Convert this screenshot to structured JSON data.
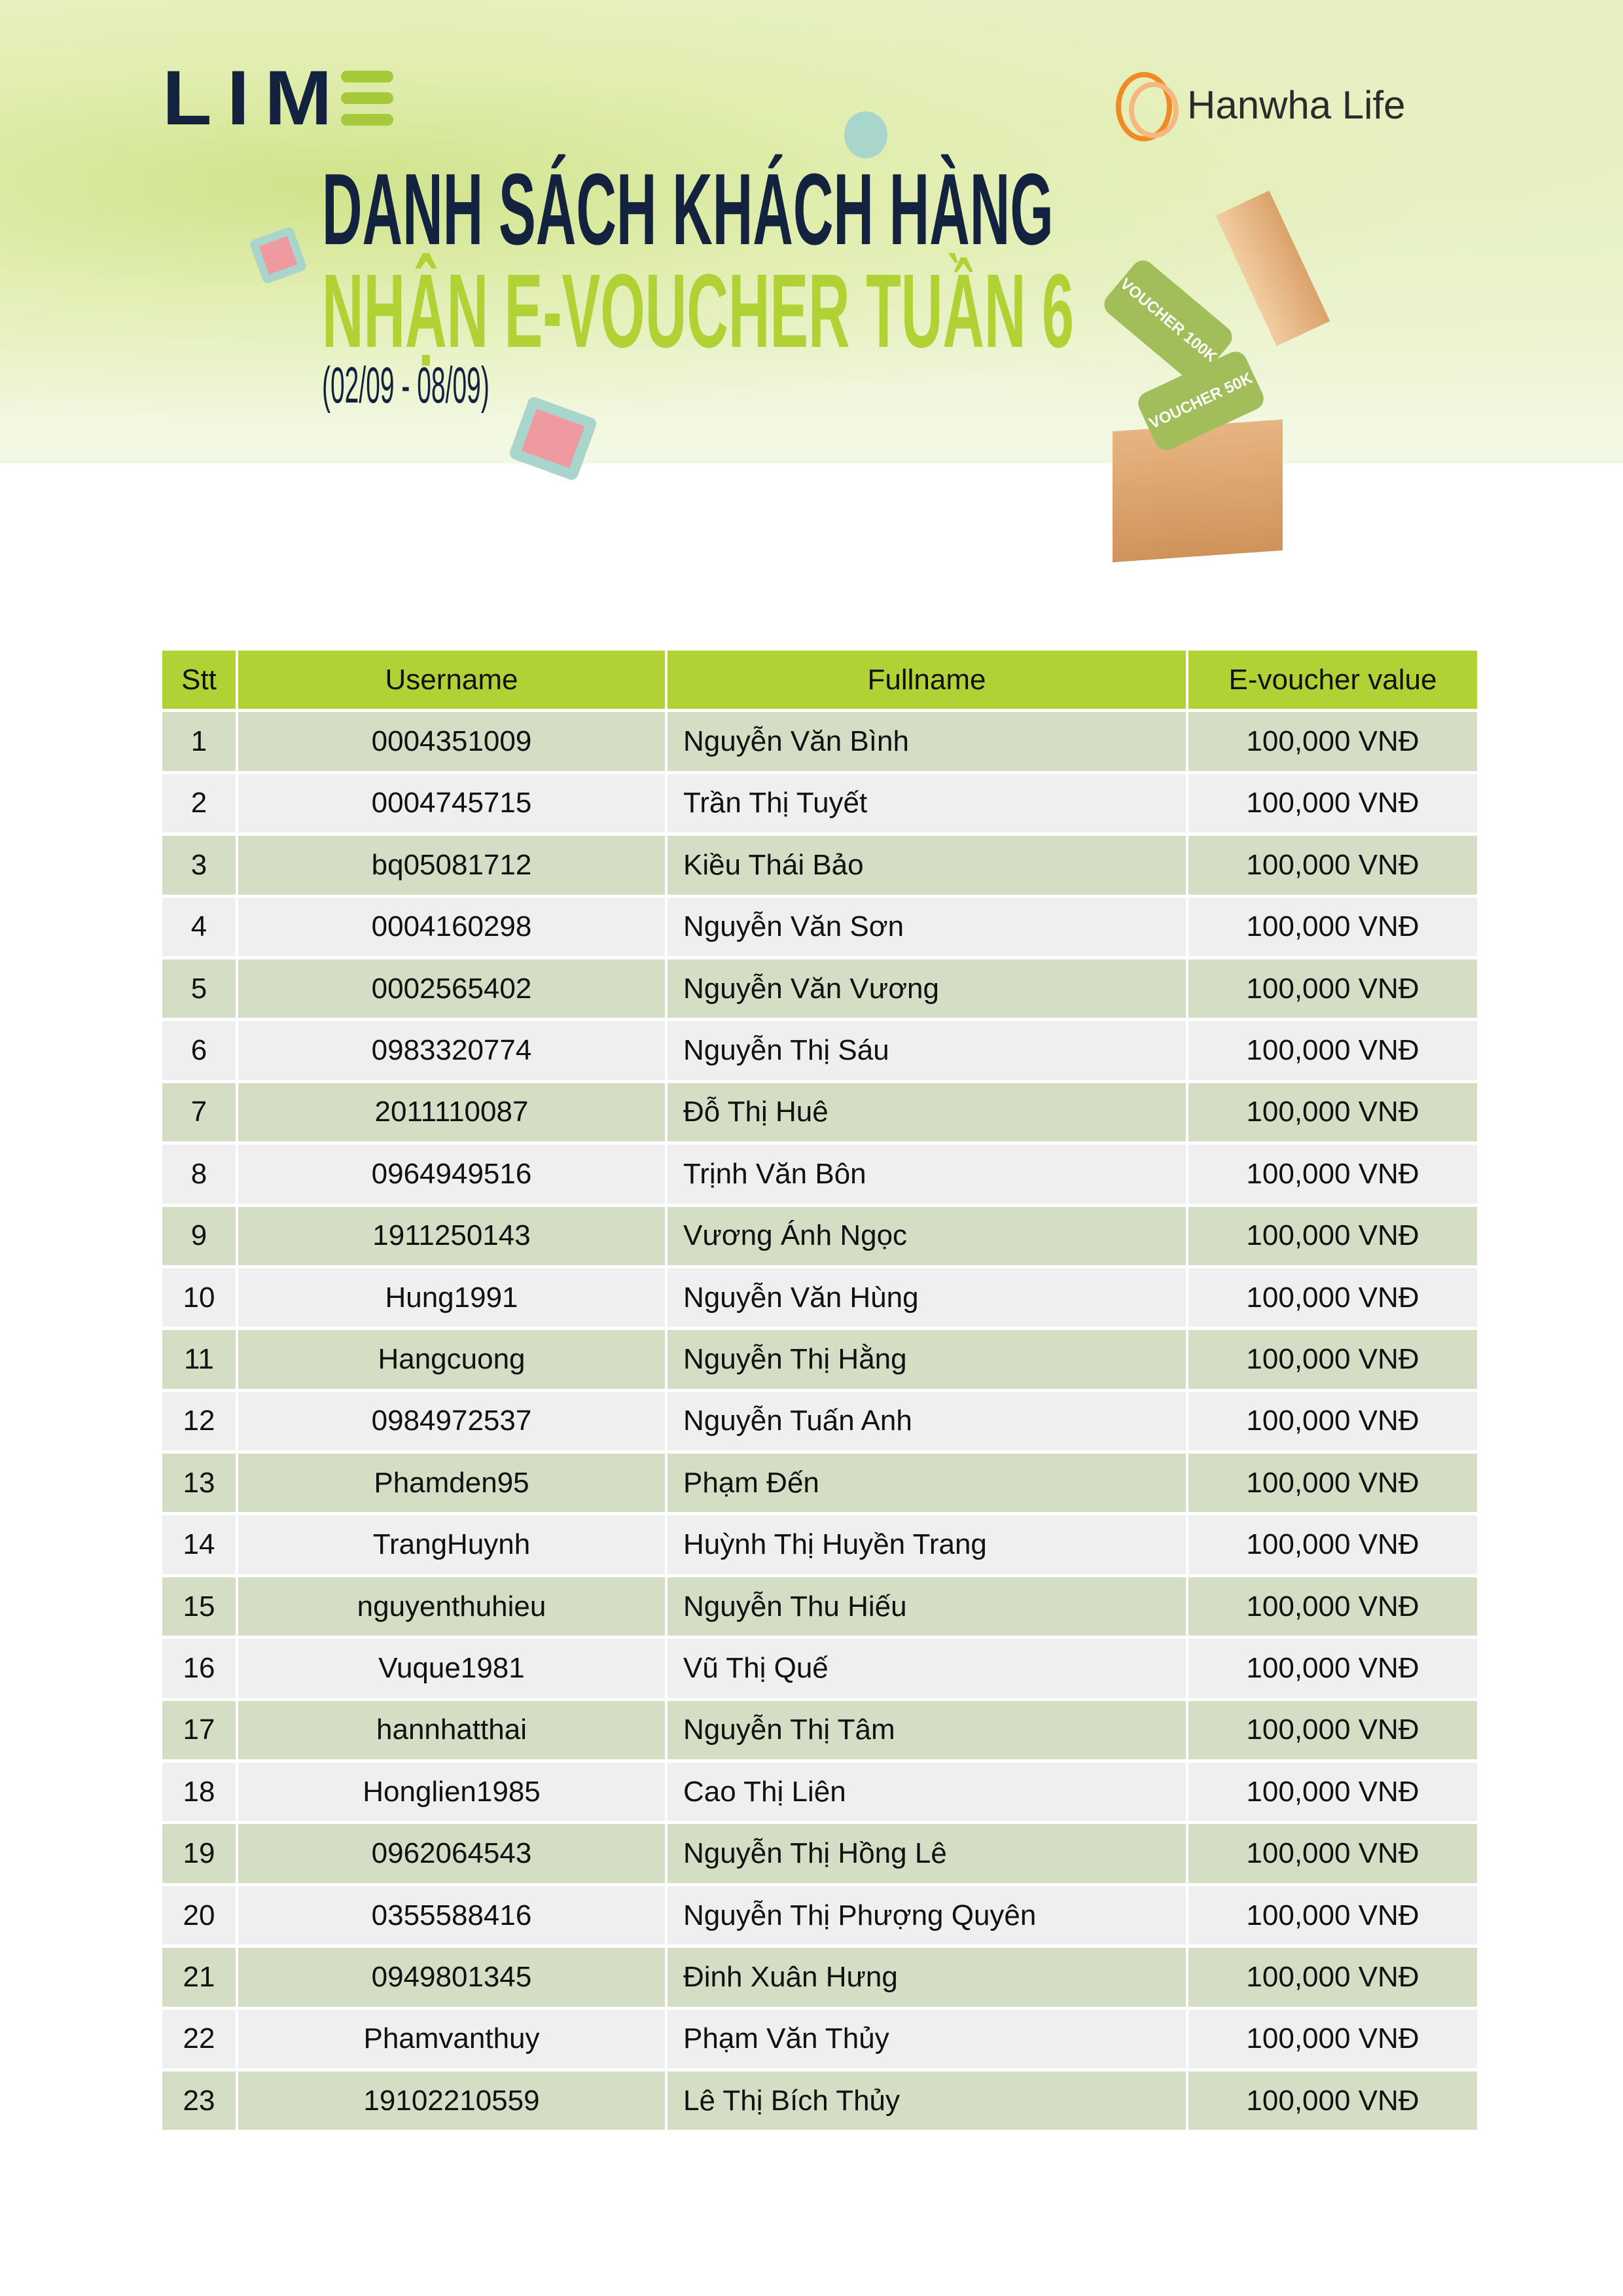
{
  "header": {
    "logo_left": "LIM",
    "logo_right": "Hanwha Life",
    "title_line1": "DANH SÁCH KHÁCH HÀNG",
    "title_line2": "NHẬN E-VOUCHER TUẦN 6",
    "date_range": "(02/09 - 08/09)",
    "voucher_labels": [
      "VOUCHER 100K",
      "VOUCHER 50K"
    ],
    "colors": {
      "navy": "#13233f",
      "lime": "#b0d235",
      "orange": "#f08a24"
    }
  },
  "table": {
    "columns": [
      "Stt",
      "Username",
      "Fullname",
      "E-voucher value"
    ],
    "rows": [
      [
        "1",
        "0004351009",
        "Nguyễn Văn Bình",
        "100,000 VNĐ"
      ],
      [
        "2",
        "0004745715",
        "Trần Thị Tuyết",
        "100,000 VNĐ"
      ],
      [
        "3",
        "bq05081712",
        "Kiều Thái Bảo",
        "100,000 VNĐ"
      ],
      [
        "4",
        "0004160298",
        "Nguyễn Văn Sơn",
        "100,000 VNĐ"
      ],
      [
        "5",
        "0002565402",
        "Nguyễn Văn Vương",
        "100,000 VNĐ"
      ],
      [
        "6",
        "0983320774",
        "Nguyễn Thị Sáu",
        "100,000 VNĐ"
      ],
      [
        "7",
        "2011110087",
        "Đỗ Thị Huê",
        "100,000 VNĐ"
      ],
      [
        "8",
        "0964949516",
        "Trịnh Văn Bôn",
        "100,000 VNĐ"
      ],
      [
        "9",
        "1911250143",
        "Vương Ánh Ngọc",
        "100,000 VNĐ"
      ],
      [
        "10",
        "Hung1991",
        "Nguyễn Văn Hùng",
        "100,000 VNĐ"
      ],
      [
        "11",
        "Hangcuong",
        "Nguyễn Thị Hằng",
        "100,000 VNĐ"
      ],
      [
        "12",
        "0984972537",
        "Nguyễn Tuấn Anh",
        "100,000 VNĐ"
      ],
      [
        "13",
        "Phamden95",
        "Phạm Đến",
        "100,000 VNĐ"
      ],
      [
        "14",
        "TrangHuynh",
        "Huỳnh Thị Huyền Trang",
        "100,000 VNĐ"
      ],
      [
        "15",
        "nguyenthuhieu",
        "Nguyễn Thu Hiếu",
        "100,000 VNĐ"
      ],
      [
        "16",
        "Vuque1981",
        "Vũ Thị Quế",
        "100,000 VNĐ"
      ],
      [
        "17",
        "hannhatthai",
        "Nguyễn Thị Tâm",
        "100,000 VNĐ"
      ],
      [
        "18",
        "Honglien1985",
        "Cao Thị Liên",
        "100,000 VNĐ"
      ],
      [
        "19",
        "0962064543",
        "Nguyễn Thị Hồng Lê",
        "100,000 VNĐ"
      ],
      [
        "20",
        "0355588416",
        "Nguyễn Thị Phượng Quyên",
        "100,000 VNĐ"
      ],
      [
        "21",
        "0949801345",
        "Đinh Xuân Hưng",
        "100,000 VNĐ"
      ],
      [
        "22",
        "Phamvanthuy",
        "Phạm Văn Thủy",
        "100,000 VNĐ"
      ],
      [
        "23",
        "19102210559",
        "Lê Thị Bích Thủy",
        "100,000 VNĐ"
      ]
    ]
  }
}
